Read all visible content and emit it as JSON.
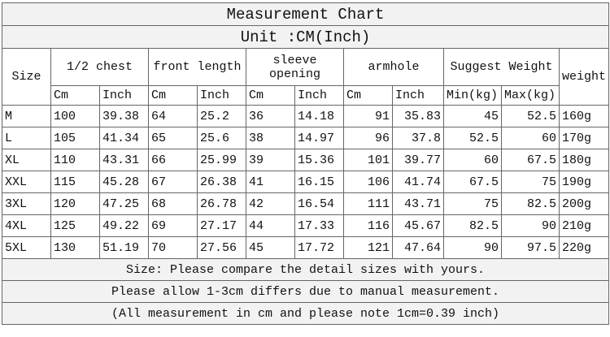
{
  "title": "Measurement Chart",
  "unit": "Unit :CM(Inch)",
  "header": {
    "groups": [
      "Size",
      "1/2 chest",
      "front length",
      "sleeve opening",
      "armhole",
      "Suggest Weight",
      "weight"
    ],
    "sub": [
      "Cm",
      "Inch",
      "Cm",
      "Inch",
      "Cm",
      "Inch",
      "Cm",
      "Inch",
      "Min(kg)",
      "Max(kg)"
    ]
  },
  "table": {
    "rows": [
      [
        "M",
        "100",
        "39.38",
        "64",
        "25.2",
        "36",
        "14.18",
        "91",
        "35.83",
        "45",
        "52.5",
        "160g"
      ],
      [
        "L",
        "105",
        "41.34",
        "65",
        "25.6",
        "38",
        "14.97",
        "96",
        "37.8",
        "52.5",
        "60",
        "170g"
      ],
      [
        "XL",
        "110",
        "43.31",
        "66",
        "25.99",
        "39",
        "15.36",
        "101",
        "39.77",
        "60",
        "67.5",
        "180g"
      ],
      [
        "XXL",
        "115",
        "45.28",
        "67",
        "26.38",
        "41",
        "16.15",
        "106",
        "41.74",
        "67.5",
        "75",
        "190g"
      ],
      [
        "3XL",
        "120",
        "47.25",
        "68",
        "26.78",
        "42",
        "16.54",
        "111",
        "43.71",
        "75",
        "82.5",
        "200g"
      ],
      [
        "4XL",
        "125",
        "49.22",
        "69",
        "27.17",
        "44",
        "17.33",
        "116",
        "45.67",
        "82.5",
        "90",
        "210g"
      ],
      [
        "5XL",
        "130",
        "51.19",
        "70",
        "27.56",
        "45",
        "17.72",
        "121",
        "47.64",
        "90",
        "97.5",
        "220g"
      ]
    ]
  },
  "notes": [
    "Size: Please compare the detail sizes with yours.",
    "Please allow 1-3cm differs due to manual measurement.",
    "(All measurement in cm and please note 1cm=0.39 inch)"
  ]
}
